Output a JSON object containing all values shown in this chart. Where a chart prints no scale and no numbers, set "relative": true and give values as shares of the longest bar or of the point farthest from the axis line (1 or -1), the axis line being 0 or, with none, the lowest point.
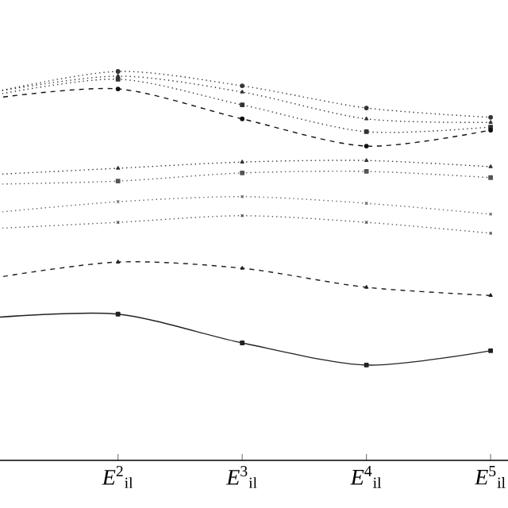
{
  "chart_data": {
    "type": "line",
    "relative": true,
    "categories": [
      null,
      "*E*$^{2}$$_{il}$",
      "*E*$^{3}$$_{il}$",
      "*E*$^{4}$$_{il}$",
      "*E*$^{5}$$_{il}$"
    ],
    "series": [
      {
        "color": "#333333",
        "marker": "circle",
        "line_style": "dotted",
        "values": [
          0.947,
          1.0,
          0.963,
          0.906,
          0.882
        ]
      },
      {
        "color": "#333333",
        "marker": "triangle",
        "line_style": "dotted",
        "values": [
          0.947,
          0.988,
          0.947,
          0.878,
          0.869
        ]
      },
      {
        "color": "#333333",
        "marker": "square",
        "line_style": "dotted",
        "values": [
          0.939,
          0.98,
          0.914,
          0.845,
          0.857
        ]
      },
      {
        "color": "#111111",
        "marker": "circle",
        "line_style": "dashed",
        "values": [
          0.931,
          0.955,
          0.878,
          0.808,
          0.849
        ]
      },
      {
        "color": "#333333",
        "marker": "triangle",
        "line_style": "dotted",
        "values": [
          0.735,
          0.751,
          0.767,
          0.771,
          0.755
        ]
      },
      {
        "color": "#555555",
        "marker": "square",
        "line_style": "dotted",
        "values": [
          0.71,
          0.718,
          0.739,
          0.743,
          0.727
        ]
      },
      {
        "color": "#666666",
        "marker": "cross",
        "line_style": "dotted",
        "values": [
          0.637,
          0.665,
          0.678,
          0.661,
          0.633
        ]
      },
      {
        "color": "#555555",
        "marker": "cross",
        "line_style": "dotted",
        "values": [
          0.596,
          0.612,
          0.629,
          0.612,
          0.584
        ]
      },
      {
        "color": "#222222",
        "marker": "triangle",
        "line_style": "dashed",
        "values": [
          0.469,
          0.51,
          0.494,
          0.445,
          0.424
        ]
      },
      {
        "color": "#222222",
        "marker": "square",
        "line_style": "solid",
        "values": [
          0.367,
          0.376,
          0.302,
          0.245,
          0.282
        ]
      }
    ]
  }
}
